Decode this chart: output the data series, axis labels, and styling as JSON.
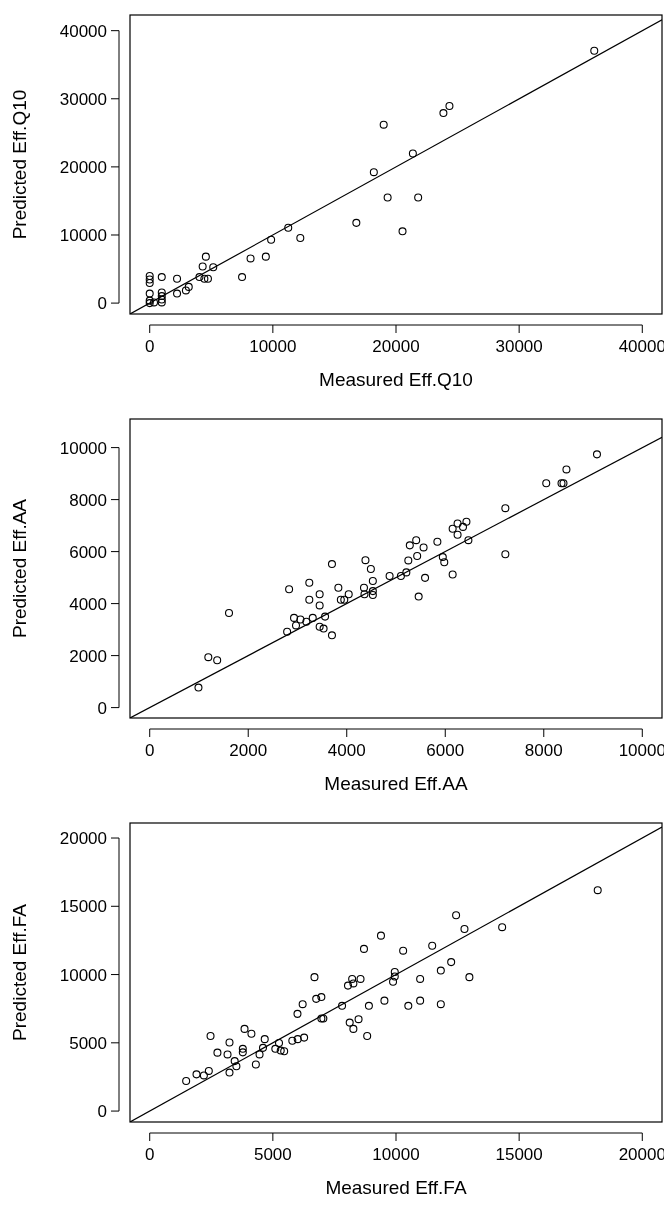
{
  "chart_data": [
    {
      "type": "scatter",
      "xlabel": "Measured Eff.Q10",
      "ylabel": "Predicted Eff.Q10",
      "xlim": [
        -1600,
        41600
      ],
      "ylim": [
        -1600,
        42300
      ],
      "xticks": [
        0,
        10000,
        20000,
        30000,
        40000
      ],
      "yticks": [
        0,
        10000,
        20000,
        30000,
        40000
      ],
      "grid": false,
      "series": [
        {
          "marker": "circle",
          "color": "#000000",
          "x": [
            36100,
            23850,
            24340,
            19000,
            21370,
            18200,
            19320,
            21800,
            16780,
            20530,
            11250,
            12230,
            9860,
            8190,
            9430,
            7500,
            4560,
            4300,
            5160,
            4040,
            4440,
            4730,
            2220,
            2220,
            2940,
            3170,
            980,
            0,
            0,
            0,
            0,
            0,
            0,
            980,
            980,
            980,
            980,
            350
          ],
          "values": [
            37050,
            27900,
            28940,
            26200,
            21960,
            19220,
            15500,
            15500,
            11780,
            10540,
            11060,
            9560,
            9300,
            6560,
            6820,
            3820,
            6820,
            5370,
            5270,
            3820,
            3570,
            3570,
            3570,
            1400,
            1860,
            2380,
            3820,
            3980,
            3460,
            2950,
            1400,
            360,
            0,
            1550,
            1030,
            520,
            100,
            100
          ]
        },
        {
          "type": "line",
          "color": "#000000",
          "x": [
            -1600,
            41600
          ],
          "values": [
            -1600,
            41600
          ]
        }
      ]
    },
    {
      "type": "scatter",
      "xlabel": "Measured Eff.AA",
      "ylabel": "Predicted Eff.AA",
      "xlim": [
        -400,
        10400
      ],
      "ylim": [
        -400,
        11100
      ],
      "xticks": [
        0,
        2000,
        4000,
        6000,
        8000,
        10000
      ],
      "yticks": [
        0,
        2000,
        4000,
        6000,
        8000,
        10000
      ],
      "grid": false,
      "series": [
        {
          "marker": "circle",
          "color": "#000000",
          "x": [
            990,
            1190,
            1370,
            1610,
            2790,
            2830,
            2930,
            2970,
            3060,
            3180,
            3310,
            3240,
            3240,
            3450,
            3450,
            3450,
            3530,
            3560,
            3700,
            3700,
            3830,
            3880,
            3950,
            4040,
            4350,
            4380,
            4490,
            4360,
            4530,
            4530,
            4530,
            4870,
            5100,
            5210,
            5250,
            5280,
            5410,
            5430,
            5460,
            5560,
            5590,
            5840,
            5950,
            5980,
            6150,
            6150,
            6250,
            6250,
            6360,
            6430,
            6470,
            7220,
            7220,
            8050,
            8360,
            8400,
            8460,
            9080
          ],
          "values": [
            770,
            1940,
            1820,
            3640,
            2920,
            4550,
            3450,
            3160,
            3390,
            3300,
            3450,
            4800,
            4150,
            4360,
            3930,
            3110,
            3040,
            3500,
            5520,
            2780,
            4610,
            4150,
            4150,
            4360,
            4610,
            5670,
            5330,
            4360,
            4480,
            4330,
            4870,
            5060,
            5060,
            5200,
            5660,
            6240,
            6440,
            5830,
            4270,
            6160,
            4990,
            6380,
            5790,
            5590,
            5120,
            6880,
            7080,
            6650,
            6950,
            7150,
            6440,
            7670,
            5900,
            8630,
            8630,
            8630,
            9160,
            9740
          ]
        },
        {
          "type": "line",
          "color": "#000000",
          "x": [
            -400,
            10400
          ],
          "values": [
            -400,
            10400
          ]
        }
      ]
    },
    {
      "type": "scatter",
      "xlabel": "Measured Eff.FA",
      "ylabel": "Predicted Eff.FA",
      "xlim": [
        -800,
        20800
      ],
      "ylim": [
        -800,
        21100
      ],
      "xticks": [
        0,
        5000,
        10000,
        15000,
        20000
      ],
      "yticks": [
        0,
        5000,
        10000,
        15000,
        20000
      ],
      "grid": false,
      "series": [
        {
          "marker": "circle",
          "color": "#000000",
          "x": [
            1480,
            1900,
            2200,
            2400,
            2470,
            2750,
            3160,
            3240,
            3240,
            3450,
            3520,
            3780,
            3780,
            3850,
            4130,
            4310,
            4460,
            4600,
            4670,
            5100,
            5250,
            5320,
            5460,
            5790,
            6010,
            6270,
            6000,
            6210,
            6690,
            6760,
            6970,
            6970,
            7050,
            7810,
            8050,
            8270,
            8220,
            8560,
            8120,
            8270,
            8480,
            8700,
            8830,
            8900,
            9390,
            9530,
            9880,
            9950,
            9950,
            10290,
            10500,
            10980,
            10980,
            11470,
            11820,
            11820,
            12240,
            12440,
            12780,
            12980,
            14310,
            18190
          ],
          "values": [
            2200,
            2690,
            2610,
            2940,
            5500,
            4280,
            4150,
            5020,
            2820,
            3660,
            3280,
            4560,
            4300,
            6020,
            5660,
            3410,
            4150,
            4630,
            5270,
            4560,
            4990,
            4430,
            4380,
            5150,
            5270,
            5380,
            7120,
            7830,
            9810,
            8220,
            8350,
            6780,
            6780,
            7710,
            9190,
            9350,
            9680,
            9680,
            6480,
            6020,
            6730,
            11880,
            5500,
            7710,
            12850,
            8090,
            9470,
            10190,
            9860,
            11750,
            7710,
            9680,
            8090,
            12110,
            10290,
            7830,
            10910,
            14340,
            13340,
            9810,
            13470,
            16180
          ]
        },
        {
          "type": "line",
          "color": "#000000",
          "x": [
            -800,
            20800
          ],
          "values": [
            -800,
            20800
          ]
        }
      ]
    }
  ]
}
